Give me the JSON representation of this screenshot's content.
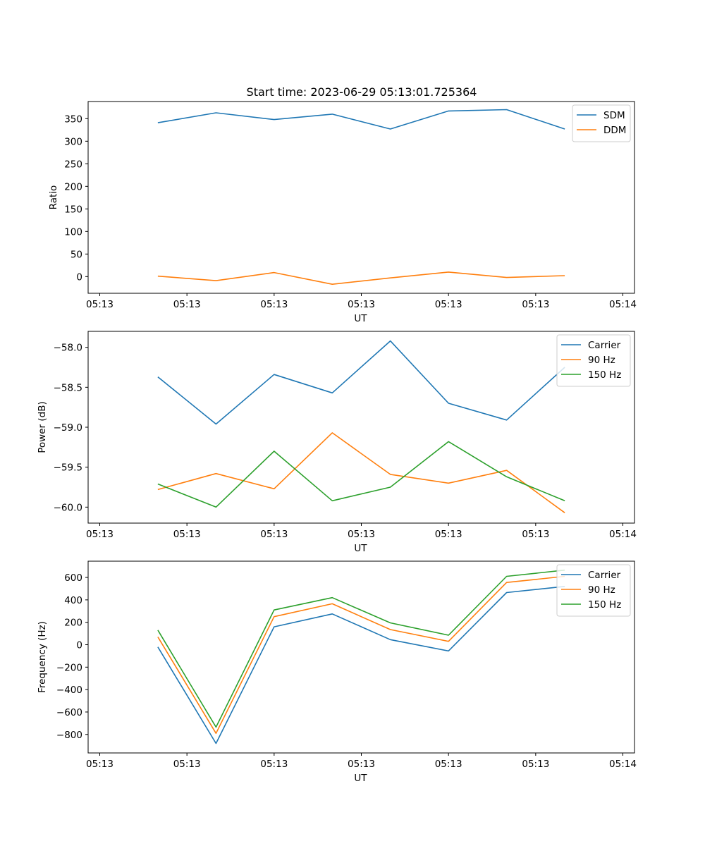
{
  "figure": {
    "title": "Start time: 2023-06-29 05:13:01.725364"
  },
  "chart_data": [
    {
      "type": "line",
      "title": "Start time: 2023-06-29 05:13:01.725364",
      "xlabel": "UT",
      "ylabel": "Ratio",
      "x": [
        1,
        2,
        3,
        4,
        5,
        6,
        7,
        8
      ],
      "xlim": [
        -0.2,
        9.2
      ],
      "xticks": [
        0,
        1.5,
        3,
        4.5,
        6,
        7.5,
        9
      ],
      "xtick_labels": [
        "05:13",
        "05:13",
        "05:13",
        "05:13",
        "05:13",
        "05:13",
        "05:14"
      ],
      "ylim": [
        -37,
        388
      ],
      "yticks": [
        0,
        50,
        100,
        150,
        200,
        250,
        300,
        350
      ],
      "ytick_labels": [
        "0",
        "50",
        "100",
        "150",
        "200",
        "250",
        "300",
        "350"
      ],
      "grid": false,
      "legend_position": "top-right",
      "series": [
        {
          "name": "SDM",
          "color": "#1f77b4",
          "values": [
            341,
            363,
            348,
            360,
            327,
            367,
            370,
            327
          ]
        },
        {
          "name": "DDM",
          "color": "#ff7f0e",
          "values": [
            1,
            -9,
            9,
            -17,
            -3,
            10,
            -2,
            2
          ]
        }
      ]
    },
    {
      "type": "line",
      "title": "",
      "xlabel": "UT",
      "ylabel": "Power (dB)",
      "x": [
        1,
        2,
        3,
        4,
        5,
        6,
        7,
        8
      ],
      "xlim": [
        -0.2,
        9.2
      ],
      "xticks": [
        0,
        1.5,
        3,
        4.5,
        6,
        7.5,
        9
      ],
      "xtick_labels": [
        "05:13",
        "05:13",
        "05:13",
        "05:13",
        "05:13",
        "05:13",
        "05:14"
      ],
      "ylim": [
        -60.2,
        -57.8
      ],
      "yticks": [
        -60.0,
        -59.5,
        -59.0,
        -58.5,
        -58.0
      ],
      "ytick_labels": [
        "−60.0",
        "−59.5",
        "−59.0",
        "−58.5",
        "−58.0"
      ],
      "grid": false,
      "legend_position": "top-right",
      "series": [
        {
          "name": "Carrier",
          "color": "#1f77b4",
          "values": [
            -58.37,
            -58.96,
            -58.34,
            -58.57,
            -57.92,
            -58.7,
            -58.91,
            -58.25
          ]
        },
        {
          "name": "90 Hz",
          "color": "#ff7f0e",
          "values": [
            -59.78,
            -59.58,
            -59.77,
            -59.07,
            -59.59,
            -59.7,
            -59.54,
            -60.07
          ]
        },
        {
          "name": "150 Hz",
          "color": "#2ca02c",
          "values": [
            -59.71,
            -60.0,
            -59.3,
            -59.92,
            -59.75,
            -59.18,
            -59.62,
            -59.92
          ]
        }
      ]
    },
    {
      "type": "line",
      "title": "",
      "xlabel": "UT",
      "ylabel": "Frequency (Hz)",
      "x": [
        1,
        2,
        3,
        4,
        5,
        6,
        7,
        8
      ],
      "xlim": [
        -0.2,
        9.2
      ],
      "xticks": [
        0,
        1.5,
        3,
        4.5,
        6,
        7.5,
        9
      ],
      "xtick_labels": [
        "05:13",
        "05:13",
        "05:13",
        "05:13",
        "05:13",
        "05:13",
        "05:14"
      ],
      "ylim": [
        -965,
        745
      ],
      "yticks": [
        -800,
        -600,
        -400,
        -200,
        0,
        200,
        400,
        600
      ],
      "ytick_labels": [
        "−800",
        "−600",
        "−400",
        "−200",
        "0",
        "200",
        "400",
        "600"
      ],
      "grid": false,
      "legend_position": "top-right",
      "series": [
        {
          "name": "Carrier",
          "color": "#1f77b4",
          "values": [
            -20,
            -880,
            160,
            275,
            45,
            -55,
            465,
            520
          ]
        },
        {
          "name": "90 Hz",
          "color": "#ff7f0e",
          "values": [
            70,
            -790,
            250,
            365,
            135,
            30,
            555,
            610
          ]
        },
        {
          "name": "150 Hz",
          "color": "#2ca02c",
          "values": [
            130,
            -735,
            310,
            420,
            195,
            85,
            610,
            665
          ]
        }
      ]
    }
  ]
}
